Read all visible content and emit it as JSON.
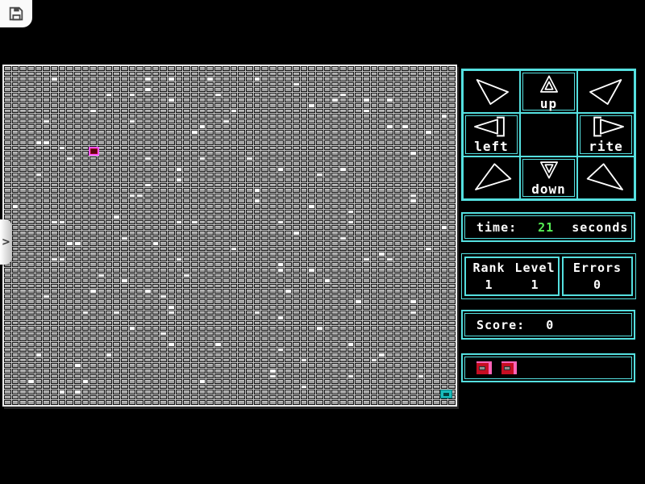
{
  "toolbar": {
    "save_icon": "floppy-disk"
  },
  "side_tab": {
    "chevron": ">"
  },
  "board": {
    "cols": 58,
    "rows": 64,
    "colors": {
      "field": "#c8c8c8",
      "cell": "#a2a2a2",
      "cell_border": "#161616",
      "dot": "#ffffff",
      "frame": "#ececec"
    },
    "dots": [
      [
        6,
        2
      ],
      [
        18,
        2
      ],
      [
        21,
        2
      ],
      [
        26,
        2
      ],
      [
        32,
        2
      ],
      [
        37,
        3
      ],
      [
        18,
        4
      ],
      [
        13,
        5
      ],
      [
        16,
        5
      ],
      [
        27,
        5
      ],
      [
        43,
        5
      ],
      [
        21,
        6
      ],
      [
        42,
        6
      ],
      [
        46,
        6
      ],
      [
        49,
        6
      ],
      [
        39,
        7
      ],
      [
        11,
        8
      ],
      [
        29,
        8
      ],
      [
        46,
        8
      ],
      [
        56,
        9
      ],
      [
        5,
        10
      ],
      [
        16,
        10
      ],
      [
        28,
        10
      ],
      [
        25,
        11
      ],
      [
        49,
        11
      ],
      [
        51,
        11
      ],
      [
        24,
        12
      ],
      [
        54,
        12
      ],
      [
        4,
        14
      ],
      [
        5,
        14
      ],
      [
        7,
        15
      ],
      [
        52,
        16
      ],
      [
        8,
        17
      ],
      [
        18,
        17
      ],
      [
        25,
        17
      ],
      [
        31,
        17
      ],
      [
        22,
        19
      ],
      [
        35,
        19
      ],
      [
        43,
        19
      ],
      [
        4,
        20
      ],
      [
        40,
        20
      ],
      [
        22,
        21
      ],
      [
        18,
        22
      ],
      [
        32,
        23
      ],
      [
        16,
        24
      ],
      [
        17,
        24
      ],
      [
        52,
        24
      ],
      [
        32,
        25
      ],
      [
        52,
        25
      ],
      [
        1,
        26
      ],
      [
        39,
        26
      ],
      [
        44,
        27
      ],
      [
        14,
        28
      ],
      [
        6,
        29
      ],
      [
        7,
        29
      ],
      [
        22,
        29
      ],
      [
        24,
        29
      ],
      [
        35,
        29
      ],
      [
        44,
        29
      ],
      [
        56,
        30
      ],
      [
        37,
        31
      ],
      [
        15,
        32
      ],
      [
        43,
        32
      ],
      [
        8,
        33
      ],
      [
        9,
        33
      ],
      [
        19,
        33
      ],
      [
        29,
        34
      ],
      [
        54,
        34
      ],
      [
        48,
        35
      ],
      [
        6,
        36
      ],
      [
        7,
        36
      ],
      [
        22,
        36
      ],
      [
        46,
        36
      ],
      [
        49,
        36
      ],
      [
        35,
        37
      ],
      [
        35,
        38
      ],
      [
        39,
        38
      ],
      [
        12,
        39
      ],
      [
        23,
        39
      ],
      [
        15,
        40
      ],
      [
        41,
        40
      ],
      [
        11,
        42
      ],
      [
        18,
        42
      ],
      [
        36,
        42
      ],
      [
        5,
        43
      ],
      [
        20,
        43
      ],
      [
        45,
        44
      ],
      [
        52,
        44
      ],
      [
        21,
        45
      ],
      [
        10,
        46
      ],
      [
        14,
        46
      ],
      [
        21,
        46
      ],
      [
        32,
        46
      ],
      [
        52,
        46
      ],
      [
        35,
        47
      ],
      [
        16,
        49
      ],
      [
        40,
        49
      ],
      [
        20,
        50
      ],
      [
        21,
        52
      ],
      [
        27,
        52
      ],
      [
        44,
        52
      ],
      [
        35,
        53
      ],
      [
        4,
        54
      ],
      [
        13,
        54
      ],
      [
        48,
        54
      ],
      [
        38,
        55
      ],
      [
        47,
        55
      ],
      [
        9,
        56
      ],
      [
        34,
        57
      ],
      [
        34,
        58
      ],
      [
        44,
        58
      ],
      [
        53,
        58
      ],
      [
        3,
        59
      ],
      [
        10,
        59
      ],
      [
        25,
        59
      ],
      [
        38,
        60
      ],
      [
        7,
        61
      ],
      [
        9,
        61
      ]
    ],
    "player": {
      "col": 11,
      "row": 15,
      "border": "#ff55ff",
      "fill": "#9b0a1e",
      "core": "#5a0410"
    },
    "goal": {
      "col": 56,
      "row": 61,
      "fill": "#19bcbc",
      "core": "#043f3f"
    }
  },
  "panel": {
    "accent": "#55e0e0",
    "dpad": {
      "up_label": "up",
      "left_label": "left",
      "rite_label": "rite",
      "down_label": "down"
    },
    "time": {
      "label": "time:",
      "value": "21",
      "unit": "seconds",
      "value_color": "#55ee55"
    },
    "rank_level": {
      "headers": [
        "Rank",
        "Level"
      ],
      "values": [
        "1",
        "1"
      ]
    },
    "errors": {
      "label": "Errors",
      "value": "0"
    },
    "score": {
      "label": "Score:",
      "value": "0"
    },
    "lives": {
      "count": 2,
      "icon_color": "#c60d22",
      "icon_trim": "#ff63b8"
    }
  }
}
